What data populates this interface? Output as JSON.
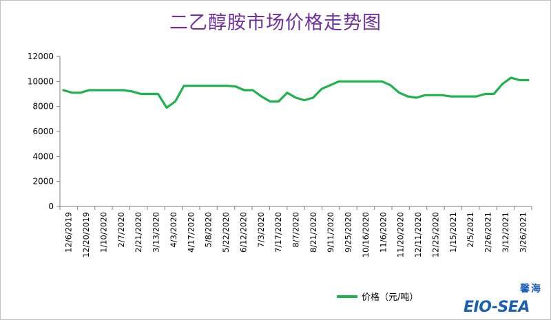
{
  "colors": {
    "line": "#1db24e",
    "title": "#7030a0",
    "logo": "#1a5fb4"
  },
  "logo": {
    "cn": "馨海",
    "en": "EIO-SEA"
  },
  "chart_data": {
    "type": "line",
    "title": "二乙醇胺市场价格走势图",
    "xlabel": "",
    "ylabel": "",
    "ylim": [
      0,
      12000
    ],
    "yticks": [
      0,
      2000,
      4000,
      6000,
      8000,
      10000,
      12000
    ],
    "grid": false,
    "legend_position": "bottom",
    "x_tick_labels": [
      "12/6/2019",
      "12/20/2019",
      "1/10/2020",
      "2/7/2020",
      "2/21/2020",
      "3/13/2020",
      "4/3/2020",
      "4/17/2020",
      "5/8/2020",
      "5/22/2020",
      "6/12/2020",
      "7/3/2020",
      "7/17/2020",
      "8/7/2020",
      "8/21/2020",
      "9/11/2020",
      "9/25/2020",
      "10/16/2020",
      "11/6/2020",
      "11/20/2020",
      "12/11/2020",
      "12/25/2020",
      "1/15/2021",
      "2/5/2021",
      "2/26/2021",
      "3/12/2021",
      "3/26/2021"
    ],
    "series": [
      {
        "name": "价格（元/吨）",
        "values": [
          9300,
          9100,
          9100,
          9300,
          9300,
          9300,
          9300,
          9300,
          9200,
          9000,
          9000,
          9000,
          7900,
          8400,
          9650,
          9650,
          9650,
          9650,
          9650,
          9650,
          9600,
          9300,
          9300,
          8800,
          8400,
          8400,
          9100,
          8700,
          8500,
          8700,
          9400,
          9700,
          10000,
          10000,
          10000,
          10000,
          10000,
          10000,
          9700,
          9100,
          8800,
          8700,
          8900,
          8900,
          8900,
          8800,
          8800,
          8800,
          8800,
          9000,
          9000,
          9800,
          10300,
          10100,
          10100
        ]
      }
    ]
  }
}
